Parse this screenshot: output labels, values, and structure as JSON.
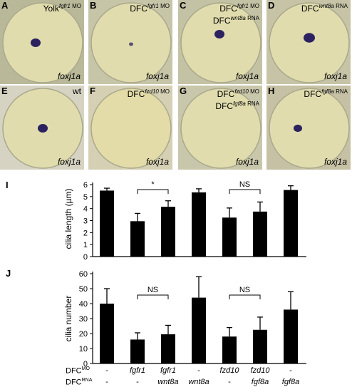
{
  "panels": [
    {
      "letter": "A",
      "title_prefix": "Yolk",
      "sup1": "fgfr1",
      "sup1_suffix": " MO",
      "line2_prefix": "",
      "sup2": "",
      "sup2_suffix": "",
      "gene": "foxj1a"
    },
    {
      "letter": "B",
      "title_prefix": "DFC",
      "sup1": "fgfr1",
      "sup1_suffix": " MO",
      "line2_prefix": "",
      "sup2": "",
      "sup2_suffix": "",
      "gene": "foxj1a"
    },
    {
      "letter": "C",
      "title_prefix": "DFC",
      "sup1": "fgfr1",
      "sup1_suffix": " MO",
      "line2_prefix": "DFC",
      "sup2": "wnt8a",
      "sup2_suffix": " RNA",
      "gene": "foxj1a"
    },
    {
      "letter": "D",
      "title_prefix": "DFC",
      "sup1": "wnt8a",
      "sup1_suffix": " RNA",
      "line2_prefix": "",
      "sup2": "",
      "sup2_suffix": "",
      "gene": "foxj1a"
    },
    {
      "letter": "E",
      "title_prefix": "wt",
      "sup1": "",
      "sup1_suffix": "",
      "line2_prefix": "",
      "sup2": "",
      "sup2_suffix": "",
      "gene": "foxj1a"
    },
    {
      "letter": "F",
      "title_prefix": "DFC",
      "sup1": "fzd10",
      "sup1_suffix": " MO",
      "line2_prefix": "",
      "sup2": "",
      "sup2_suffix": "",
      "gene": "foxj1a"
    },
    {
      "letter": "G",
      "title_prefix": "DFC",
      "sup1": "fzd10",
      "sup1_suffix": " MO",
      "line2_prefix": "DFC",
      "sup2": "fgf8a",
      "sup2_suffix": " RNA",
      "gene": "foxj1a"
    },
    {
      "letter": "H",
      "title_prefix": "DFC",
      "sup1": "fgf8a",
      "sup1_suffix": " RNA",
      "line2_prefix": "",
      "sup2": "",
      "sup2_suffix": "",
      "gene": "foxj1a"
    }
  ],
  "chart_data": [
    {
      "type": "bar",
      "panel_letter": "I",
      "ylabel": "cilia length (µm)",
      "ylim": [
        0,
        6
      ],
      "yticks": [
        0,
        1,
        2,
        3,
        4,
        5,
        6
      ],
      "values": [
        5.5,
        2.95,
        4.15,
        5.35,
        3.25,
        3.75,
        5.55
      ],
      "errors": [
        0.2,
        0.65,
        0.5,
        0.3,
        0.8,
        0.8,
        0.35
      ],
      "brackets": [
        {
          "from": 1,
          "to": 2,
          "label": "*"
        },
        {
          "from": 4,
          "to": 5,
          "label": "NS"
        }
      ]
    },
    {
      "type": "bar",
      "panel_letter": "J",
      "ylabel": "cilia number",
      "ylim": [
        0,
        60
      ],
      "yticks": [
        0,
        10,
        20,
        30,
        40,
        50,
        60
      ],
      "values": [
        40,
        16,
        19.5,
        44,
        18,
        22.5,
        36
      ],
      "errors": [
        10,
        4.5,
        6,
        14,
        6,
        8.5,
        12
      ],
      "brackets": [
        {
          "from": 1,
          "to": 2,
          "label": "NS"
        },
        {
          "from": 4,
          "to": 5,
          "label": "NS"
        }
      ]
    }
  ],
  "xaxis": {
    "row1_label": "DFC",
    "row1_sup": "MO",
    "row2_label": "DFC",
    "row2_sup": "RNA",
    "row1": [
      "-",
      "fgfr1",
      "fgfr1",
      "-",
      "fzd10",
      "fzd10",
      "-"
    ],
    "row2": [
      "-",
      "-",
      "wnt8a",
      "wnt8a",
      "-",
      "fgf8a",
      "fgf8a"
    ]
  }
}
